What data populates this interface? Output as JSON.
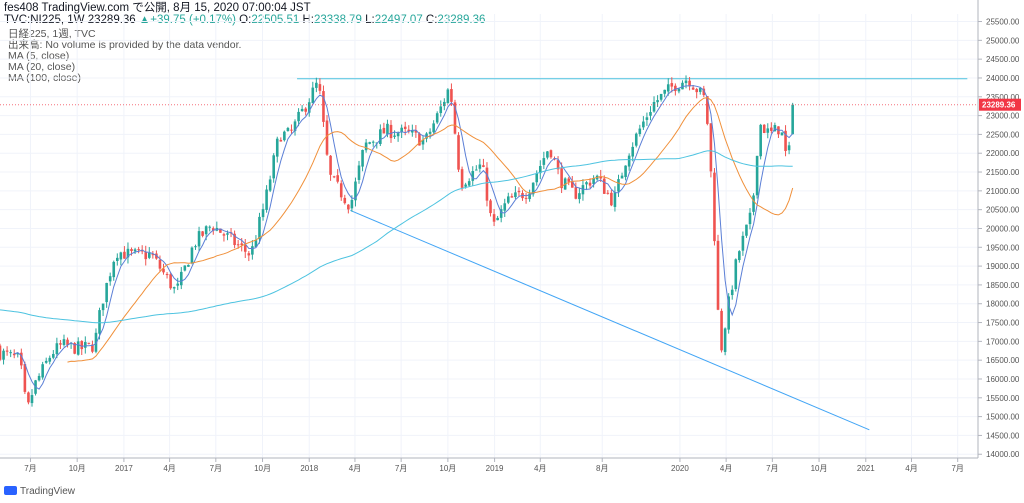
{
  "header": {
    "line1": "fes408 TradingView.com で公開, 8月 15, 2020 07:00:04 JST",
    "symbol": "TVC:NI225, 1W",
    "last": "23289.36",
    "arrow": "▲",
    "change": "+39.75 (+0.17%)",
    "o_label": "O:",
    "o_value": "22505.51",
    "h_label": "H:",
    "h_value": "23338.79",
    "l_label": "L:",
    "l_value": "22497.07",
    "c_label": "C:",
    "c_value": "23289.36"
  },
  "indicators": {
    "title": "日経225, 1週, TVC",
    "volume": "出来高: No volume is provided by the data vendor.",
    "ma5": "MA (5, close)",
    "ma20": "MA (20, close)",
    "ma100": "MA (100, close)"
  },
  "footer": {
    "brand": "TradingView"
  },
  "colors": {
    "up": "#26a69a",
    "down": "#ef5350",
    "ma5": "#5b7fd6",
    "ma20": "#f0903a",
    "ma100": "#4dc3e0",
    "trendline": "#42a5f5",
    "hline": "#4dc3e0",
    "last_price": "#f23645"
  },
  "chart_data": {
    "type": "candlestick",
    "title": "",
    "x_axis": {
      "start": "2016-05-02",
      "end": "2021-08-10",
      "ticks": [
        {
          "date": "2016-07-01",
          "label": "7月"
        },
        {
          "date": "2016-10-01",
          "label": "10月"
        },
        {
          "date": "2017-01-01",
          "label": "2017"
        },
        {
          "date": "2017-04-01",
          "label": "4月"
        },
        {
          "date": "2017-07-01",
          "label": "7月"
        },
        {
          "date": "2017-10-01",
          "label": "10月"
        },
        {
          "date": "2018-01-01",
          "label": "2018"
        },
        {
          "date": "2018-04-01",
          "label": "4月"
        },
        {
          "date": "2018-07-01",
          "label": "7月"
        },
        {
          "date": "2018-10-01",
          "label": "10月"
        },
        {
          "date": "2019-01-01",
          "label": "2019"
        },
        {
          "date": "2019-04-01",
          "label": "4月"
        },
        {
          "date": "2019-08-01",
          "label": "8月"
        },
        {
          "date": "2020-01-01",
          "label": "2020"
        },
        {
          "date": "2020-04-01",
          "label": "4月"
        },
        {
          "date": "2020-07-01",
          "label": "7月"
        },
        {
          "date": "2020-10-01",
          "label": "10月"
        },
        {
          "date": "2021-01-01",
          "label": "2021"
        },
        {
          "date": "2021-04-01",
          "label": "4月"
        },
        {
          "date": "2021-07-01",
          "label": "7月"
        }
      ]
    },
    "y_axis": {
      "min": 13900,
      "max": 25700,
      "position": "right",
      "ticks": [
        14000,
        14500,
        15000,
        15500,
        16000,
        16500,
        17000,
        17500,
        18000,
        18500,
        19000,
        19500,
        20000,
        20500,
        21000,
        21500,
        22000,
        22500,
        23000,
        23500,
        24000,
        24500,
        25000,
        25500
      ],
      "tick_labels": [
        "14000.00",
        "14500.00",
        "15000.00",
        "15500.00",
        "16000.00",
        "16500.00",
        "17000.00",
        "17500.00",
        "18000.00",
        "18500.00",
        "19000.00",
        "19500.00",
        "20000.00",
        "20500.00",
        "21000.00",
        "21500.00",
        "22000.00",
        "22500.00",
        "23000.00",
        "23500.00",
        "24000.00",
        "24500.00",
        "25000.00",
        "25500.00"
      ]
    },
    "last_price": 23289.36,
    "last_price_label": "23289.36",
    "grid": true,
    "price_path": [
      [
        "2016-05-02",
        16700
      ],
      [
        "2016-06-10",
        16500
      ],
      [
        "2016-06-24",
        15100
      ],
      [
        "2016-07-08",
        15800
      ],
      [
        "2016-08-12",
        16700
      ],
      [
        "2016-09-02",
        16900
      ],
      [
        "2016-10-07",
        16800
      ],
      [
        "2016-11-04",
        16900
      ],
      [
        "2016-11-18",
        18000
      ],
      [
        "2016-12-16",
        19400
      ],
      [
        "2017-01-13",
        19300
      ],
      [
        "2017-02-24",
        19300
      ],
      [
        "2017-04-14",
        18300
      ],
      [
        "2017-05-19",
        19600
      ],
      [
        "2017-06-23",
        20100
      ],
      [
        "2017-08-18",
        19500
      ],
      [
        "2017-09-08",
        19300
      ],
      [
        "2017-10-06",
        20700
      ],
      [
        "2017-11-03",
        22500
      ],
      [
        "2017-11-24",
        22500
      ],
      [
        "2018-01-19",
        23900
      ],
      [
        "2018-02-09",
        21400
      ],
      [
        "2018-03-23",
        20600
      ],
      [
        "2018-04-20",
        22200
      ],
      [
        "2018-06-01",
        22600
      ],
      [
        "2018-07-20",
        22500
      ],
      [
        "2018-08-17",
        22300
      ],
      [
        "2018-09-14",
        23100
      ],
      [
        "2018-10-05",
        23800
      ],
      [
        "2018-10-26",
        21200
      ],
      [
        "2018-12-07",
        21700
      ],
      [
        "2018-12-28",
        20000
      ],
      [
        "2019-01-25",
        20700
      ],
      [
        "2019-03-08",
        21000
      ],
      [
        "2019-04-19",
        22200
      ],
      [
        "2019-05-10",
        21300
      ],
      [
        "2019-06-07",
        20900
      ],
      [
        "2019-07-19",
        21400
      ],
      [
        "2019-08-23",
        20700
      ],
      [
        "2019-09-20",
        22000
      ],
      [
        "2019-11-08",
        23300
      ],
      [
        "2019-12-20",
        23800
      ],
      [
        "2020-01-17",
        24000
      ],
      [
        "2020-02-21",
        23400
      ],
      [
        "2020-03-06",
        20700
      ],
      [
        "2020-03-20",
        16600
      ],
      [
        "2020-04-03",
        17800
      ],
      [
        "2020-04-24",
        19300
      ],
      [
        "2020-05-22",
        20400
      ],
      [
        "2020-06-05",
        22800
      ],
      [
        "2020-06-26",
        22500
      ],
      [
        "2020-07-17",
        22700
      ],
      [
        "2020-07-31",
        21700
      ],
      [
        "2020-08-14",
        23289.36
      ]
    ],
    "series": [
      {
        "name": "MA (5, close)",
        "key": "ma5",
        "color": "#5b7fd6",
        "period": 5
      },
      {
        "name": "MA (20, close)",
        "key": "ma20",
        "color": "#f0903a",
        "period": 20
      },
      {
        "name": "MA (100, close)",
        "key": "ma100",
        "color": "#4dc3e0",
        "period": 100,
        "start_value": 17850
      }
    ],
    "annotations": [
      {
        "type": "horizontal_line",
        "from": "2017-12-08",
        "to": "2021-07-20",
        "value": 23980,
        "color": "#4dc3e0"
      },
      {
        "type": "trend_line",
        "points": [
          [
            "2018-03-23",
            20480
          ],
          [
            "2021-01-08",
            14650
          ]
        ],
        "color": "#42a5f5"
      }
    ]
  }
}
